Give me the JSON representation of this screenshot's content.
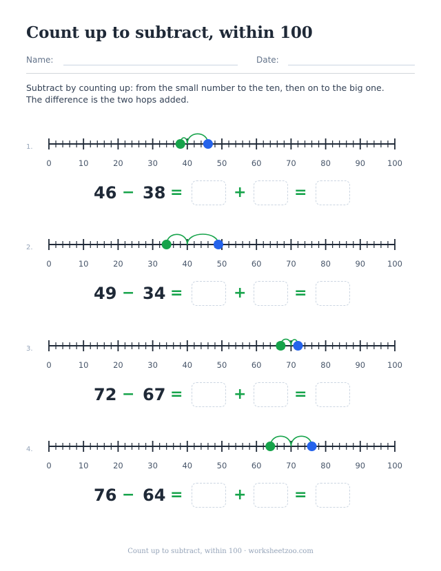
{
  "title": "Count up to subtract, within 100",
  "name_label": "Name:",
  "date_label": "Date:",
  "instructions": "Subtract by counting up: from the small number to the ten, then on to the big one. The difference is the two hops added.",
  "tick_labels": [
    "0",
    "10",
    "20",
    "30",
    "40",
    "50",
    "60",
    "70",
    "80",
    "90",
    "100"
  ],
  "number_line": {
    "min": 0,
    "max": 100,
    "minor_step": 2,
    "major_step": 10
  },
  "colors": {
    "start_dot": "#16a34a",
    "end_dot": "#2563eb",
    "hop_arc": "#16a34a",
    "operator": "#16a34a"
  },
  "problems": [
    {
      "label": "1.",
      "minuend": "46",
      "subtrahend": "38",
      "minus": "−",
      "equals": "=",
      "plus": "+",
      "equals2": "=",
      "start": 38,
      "ten": 40,
      "end": 46
    },
    {
      "label": "2.",
      "minuend": "49",
      "subtrahend": "34",
      "minus": "−",
      "equals": "=",
      "plus": "+",
      "equals2": "=",
      "start": 34,
      "ten": 40,
      "end": 49
    },
    {
      "label": "3.",
      "minuend": "72",
      "subtrahend": "67",
      "minus": "−",
      "equals": "=",
      "plus": "+",
      "equals2": "=",
      "start": 67,
      "ten": 70,
      "end": 72
    },
    {
      "label": "4.",
      "minuend": "76",
      "subtrahend": "64",
      "minus": "−",
      "equals": "=",
      "plus": "+",
      "equals2": "=",
      "start": 64,
      "ten": 70,
      "end": 76
    }
  ],
  "footer": "Count up to subtract, within 100 · worksheetzoo.com"
}
